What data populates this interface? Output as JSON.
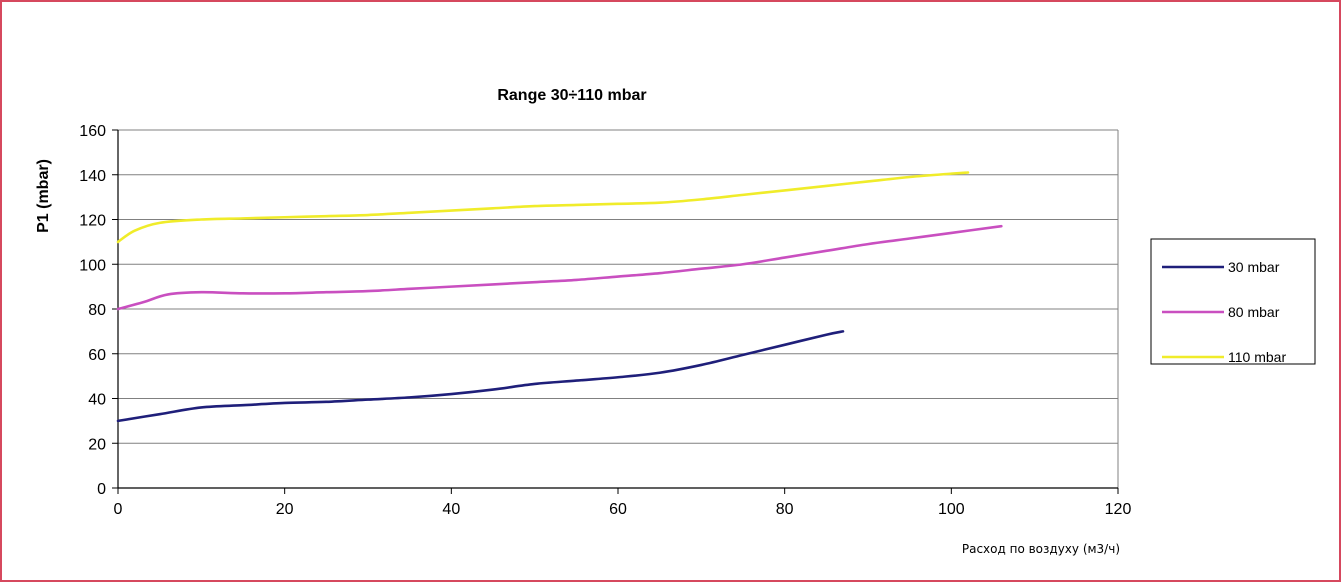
{
  "chart_data": {
    "type": "line",
    "title": "Range 30÷110 mbar",
    "xlabel": "Расход по воздуху (м3/ч)",
    "ylabel": "P1 (mbar)",
    "xlim": [
      0,
      120
    ],
    "ylim": [
      0,
      160
    ],
    "x_ticks": [
      "0",
      "20",
      "40",
      "60",
      "80",
      "100",
      "120"
    ],
    "y_ticks": [
      "0",
      "20",
      "40",
      "60",
      "80",
      "100",
      "120",
      "140",
      "160"
    ],
    "grid": "horizontal",
    "legend_position": "right",
    "series": [
      {
        "name": "30 mbar",
        "color": "#1f1f7a",
        "points": [
          [
            0,
            30
          ],
          [
            5,
            33
          ],
          [
            10,
            36
          ],
          [
            15,
            37
          ],
          [
            20,
            38
          ],
          [
            25,
            38.5
          ],
          [
            30,
            39.5
          ],
          [
            35,
            40.5
          ],
          [
            40,
            42
          ],
          [
            45,
            44
          ],
          [
            50,
            46.5
          ],
          [
            55,
            48
          ],
          [
            60,
            49.5
          ],
          [
            65,
            51.5
          ],
          [
            70,
            55
          ],
          [
            75,
            59.5
          ],
          [
            80,
            64
          ],
          [
            85,
            68.5
          ],
          [
            87,
            70
          ]
        ]
      },
      {
        "name": "80 mbar",
        "color": "#c94fc0",
        "points": [
          [
            0,
            80
          ],
          [
            3,
            83
          ],
          [
            6,
            86.5
          ],
          [
            10,
            87.5
          ],
          [
            15,
            87
          ],
          [
            20,
            87
          ],
          [
            25,
            87.5
          ],
          [
            30,
            88
          ],
          [
            35,
            89
          ],
          [
            40,
            90
          ],
          [
            45,
            91
          ],
          [
            50,
            92
          ],
          [
            55,
            93
          ],
          [
            60,
            94.5
          ],
          [
            65,
            96
          ],
          [
            70,
            98
          ],
          [
            75,
            100
          ],
          [
            80,
            103
          ],
          [
            85,
            106
          ],
          [
            90,
            109
          ],
          [
            95,
            111.5
          ],
          [
            100,
            114
          ],
          [
            106,
            117
          ]
        ]
      },
      {
        "name": "110 mbar",
        "color": "#f0ec2a",
        "points": [
          [
            0,
            110
          ],
          [
            2,
            115
          ],
          [
            5,
            118.5
          ],
          [
            10,
            120
          ],
          [
            15,
            120.5
          ],
          [
            20,
            121
          ],
          [
            25,
            121.5
          ],
          [
            30,
            122
          ],
          [
            35,
            123
          ],
          [
            40,
            124
          ],
          [
            45,
            125
          ],
          [
            50,
            126
          ],
          [
            55,
            126.5
          ],
          [
            60,
            127
          ],
          [
            65,
            127.5
          ],
          [
            70,
            129
          ],
          [
            75,
            131
          ],
          [
            80,
            133
          ],
          [
            85,
            135
          ],
          [
            90,
            137
          ],
          [
            95,
            139
          ],
          [
            100,
            140.5
          ],
          [
            102,
            141
          ]
        ]
      }
    ]
  }
}
